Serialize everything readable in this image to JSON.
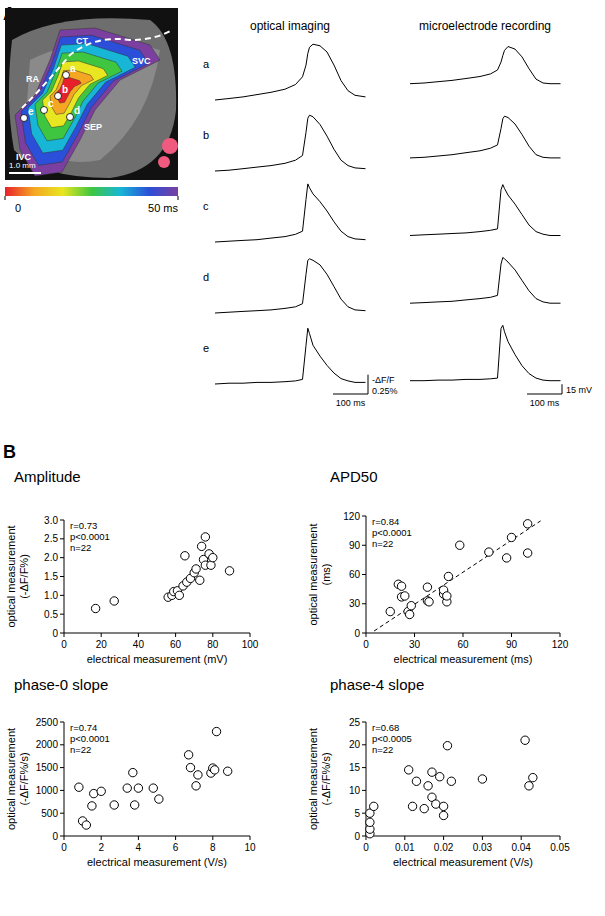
{
  "panel_a": {
    "label": "A",
    "map": {
      "labels": [
        "CT",
        "SVC",
        "RA",
        "SEP",
        "IVC"
      ],
      "scale_bar": "1.0 mm",
      "sites": [
        "a",
        "b",
        "c",
        "d",
        "e"
      ],
      "colorbar": {
        "range": [
          0,
          50
        ],
        "ticks": [
          {
            "value": 0,
            "label": "0"
          },
          {
            "value": 50,
            "label": "50 ms"
          }
        ]
      }
    },
    "columns": [
      "optical imaging",
      "microelectrode recording"
    ],
    "time": [
      0,
      40,
      80,
      120,
      160,
      200,
      230,
      250,
      260,
      265,
      270,
      280,
      300,
      320,
      340,
      360,
      380,
      400,
      430
    ],
    "optical_ylim": [
      0,
      0.8
    ],
    "electrical_ylim": [
      -80,
      15
    ],
    "traces": [
      {
        "label": "a",
        "optical": [
          0,
          0.02,
          0.04,
          0.07,
          0.1,
          0.14,
          0.2,
          0.3,
          0.45,
          0.6,
          0.68,
          0.72,
          0.7,
          0.62,
          0.45,
          0.25,
          0.12,
          0.06,
          0.04
        ],
        "electrical": [
          -55,
          -54,
          -52,
          -50,
          -47,
          -44,
          -40,
          -34,
          -22,
          -12,
          -4,
          2,
          -2,
          -14,
          -32,
          -48,
          -54,
          -55,
          -55
        ]
      },
      {
        "label": "b",
        "optical": [
          0,
          0.01,
          0.03,
          0.05,
          0.07,
          0.1,
          0.14,
          0.2,
          0.5,
          0.68,
          0.72,
          0.7,
          0.6,
          0.45,
          0.28,
          0.14,
          0.07,
          0.04,
          0.03
        ],
        "electrical": [
          -60,
          -59,
          -57,
          -55,
          -52,
          -49,
          -45,
          -40,
          -15,
          0,
          4,
          2,
          -8,
          -24,
          -42,
          -55,
          -59,
          -60,
          -60
        ]
      },
      {
        "label": "c",
        "optical": [
          0,
          0.01,
          0.02,
          0.03,
          0.05,
          0.07,
          0.1,
          0.14,
          0.55,
          0.75,
          0.7,
          0.62,
          0.52,
          0.4,
          0.26,
          0.14,
          0.07,
          0.04,
          0.03
        ],
        "electrical": [
          -70,
          -69,
          -68,
          -67,
          -66,
          -64,
          -62,
          -60,
          0,
          8,
          2,
          -8,
          -22,
          -38,
          -54,
          -64,
          -68,
          -70,
          -70
        ]
      },
      {
        "label": "d",
        "optical": [
          0,
          0.01,
          0.02,
          0.03,
          0.04,
          0.06,
          0.08,
          0.12,
          0.5,
          0.68,
          0.7,
          0.68,
          0.62,
          0.5,
          0.34,
          0.18,
          0.08,
          0.04,
          0.03
        ],
        "electrical": [
          -65,
          -64,
          -63,
          -62,
          -60,
          -58,
          -56,
          -53,
          -5,
          5,
          3,
          -2,
          -14,
          -30,
          -46,
          -58,
          -63,
          -65,
          -65
        ]
      },
      {
        "label": "e",
        "optical": [
          0,
          0.01,
          0.01,
          0.02,
          0.02,
          0.03,
          0.04,
          0.06,
          0.5,
          0.72,
          0.65,
          0.5,
          0.36,
          0.24,
          0.14,
          0.07,
          0.04,
          0.02,
          0.02
        ],
        "electrical": [
          -75,
          -75,
          -74,
          -74,
          -73,
          -73,
          -72,
          -71,
          5,
          10,
          0,
          -15,
          -35,
          -52,
          -64,
          -71,
          -74,
          -75,
          -75
        ]
      }
    ],
    "scale_bars": {
      "optical": {
        "label": "-ΔF/F",
        "value": 0.25,
        "value_label": "0.25%",
        "time": 100,
        "time_label": "100 ms"
      },
      "electrical": {
        "value": 15,
        "value_label": "15 mV",
        "time": 100,
        "time_label": "100 ms"
      }
    }
  },
  "panel_b": {
    "label": "B"
  },
  "chart_data": [
    {
      "type": "scatter",
      "title": "Amplitude",
      "x_label": "electrical measurement (mV)",
      "y_label": [
        "optical measurement",
        "(-ΔF/F%)"
      ],
      "annotations": [
        "r=0.73",
        "p<0.0001",
        "n=22"
      ],
      "marker": "circle",
      "x": [
        17,
        27,
        56,
        58,
        59,
        61,
        62,
        64,
        65,
        66,
        68,
        70,
        71,
        73,
        74,
        75,
        76,
        76,
        78,
        79,
        80,
        89
      ],
      "values": [
        0.65,
        0.85,
        0.95,
        1.0,
        1.1,
        1.12,
        1.0,
        1.25,
        2.05,
        1.35,
        1.45,
        1.6,
        1.7,
        1.4,
        2.3,
        1.95,
        2.55,
        1.8,
        2.1,
        1.8,
        2.0,
        1.65
      ],
      "xlim": [
        0,
        100
      ],
      "ylim": [
        0,
        3
      ],
      "xticks": [
        0,
        20,
        40,
        60,
        80,
        100
      ],
      "yticks": [
        0,
        0.5,
        {
          "value": 1,
          "label": "1.0"
        },
        1.5,
        {
          "value": 2,
          "label": "2.0"
        },
        2.5,
        {
          "value": 3,
          "label": "3.0"
        }
      ]
    },
    {
      "type": "scatter",
      "title": "APD50",
      "x_label": "electrical measurement (ms)",
      "y_label": [
        "optical measurement",
        "(ms)"
      ],
      "annotations": [
        "r=0.84",
        "p<0.0001",
        "n=22"
      ],
      "marker": "circle",
      "x": [
        15,
        20,
        22,
        22,
        24,
        26,
        27,
        28,
        38,
        38,
        39,
        48,
        48,
        50,
        50,
        51,
        58,
        76,
        87,
        90,
        100,
        100
      ],
      "values": [
        22,
        50,
        48,
        37,
        38,
        22,
        19,
        28,
        33,
        47,
        32,
        40,
        44,
        32,
        38,
        58,
        90,
        83,
        77,
        98,
        82,
        112
      ],
      "fit_line": {
        "x": [
          5,
          108
        ],
        "values": [
          2,
          115
        ]
      },
      "xlim": [
        0,
        120
      ],
      "ylim": [
        0,
        120
      ],
      "xticks": [
        0,
        30,
        60,
        90,
        120
      ],
      "yticks": [
        0,
        30,
        60,
        90,
        120
      ]
    },
    {
      "type": "scatter",
      "title": "phase-0 slope",
      "x_label": "electrical measurement (V/s)",
      "y_label": [
        "optical measurement",
        "(-ΔF/F%/s)"
      ],
      "annotations": [
        "r=0.74",
        "p<0.0001",
        "n=22"
      ],
      "marker": "circle",
      "x": [
        0.8,
        1.0,
        1.2,
        1.5,
        1.6,
        2.0,
        2.7,
        3.4,
        3.7,
        3.8,
        4.0,
        4.8,
        5.1,
        6.7,
        6.8,
        7.1,
        7.2,
        7.9,
        8.0,
        8.1,
        8.2,
        8.8
      ],
      "values": [
        1070,
        330,
        240,
        660,
        930,
        980,
        680,
        1050,
        1390,
        680,
        1050,
        1050,
        810,
        1780,
        1500,
        1100,
        1340,
        1380,
        1490,
        1450,
        2290,
        1420
      ],
      "xlim": [
        0,
        10
      ],
      "ylim": [
        0,
        2500
      ],
      "xticks": [
        0,
        2,
        4,
        6,
        8,
        10
      ],
      "yticks": [
        0,
        500,
        1000,
        1500,
        2000,
        2500
      ]
    },
    {
      "type": "scatter",
      "title": "phase-4 slope",
      "x_label": "electrical measurement (V/s)",
      "y_label": [
        "optical measurement",
        "(-ΔF/F%/s)"
      ],
      "annotations": [
        "r=0.68",
        "p<0.0005",
        "n=22"
      ],
      "marker": "circle",
      "x": [
        0.001,
        0.001,
        0.001,
        0.001,
        0.002,
        0.011,
        0.012,
        0.013,
        0.015,
        0.016,
        0.017,
        0.017,
        0.018,
        0.019,
        0.02,
        0.02,
        0.021,
        0.022,
        0.03,
        0.041,
        0.042,
        0.043
      ],
      "values": [
        0.5,
        1.5,
        3,
        5,
        6.5,
        14.5,
        6.5,
        12,
        6,
        11,
        14,
        8.5,
        7,
        13,
        4.5,
        6.5,
        19.8,
        12,
        12.5,
        21,
        11,
        12.8
      ],
      "xlim": [
        0,
        0.05
      ],
      "ylim": [
        0,
        25
      ],
      "xticks": [
        0,
        0.01,
        0.02,
        0.03,
        0.04,
        0.05
      ],
      "yticks": [
        0,
        5,
        10,
        15,
        20,
        25
      ]
    }
  ]
}
